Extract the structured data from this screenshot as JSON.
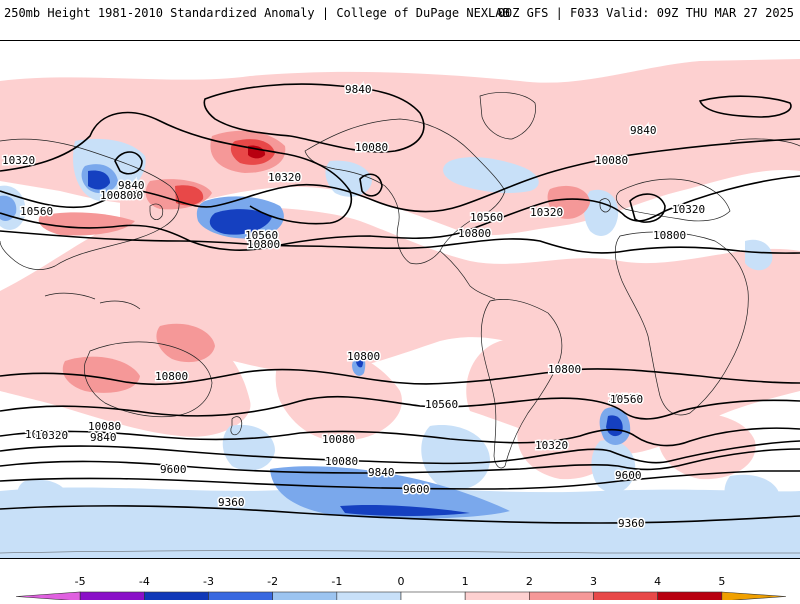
{
  "header": {
    "left": "250mb Height 1981-2010 Standardized Anomaly | College of DuPage NEXLAB",
    "right": "00Z GFS | F033 Valid: 09Z THU MAR 27 2025"
  },
  "colorbar": {
    "ticks": [
      "-5",
      "-4",
      "-3",
      "-2",
      "-1",
      "0",
      "1",
      "2",
      "3",
      "4",
      "5"
    ],
    "colors": [
      "#e060e0",
      "#8a10c8",
      "#1038b8",
      "#3868e0",
      "#9cc4f0",
      "#c8e0f8",
      "#ffffff",
      "#fdd0d0",
      "#f59898",
      "#e84848",
      "#b80010",
      "#f0a000"
    ]
  },
  "contour_labels": [
    "9840",
    "10320",
    "10080",
    "10560",
    "10320",
    "10080",
    "10560",
    "10800",
    "9840",
    "10080",
    "10560",
    "10320",
    "10800",
    "10800",
    "10080",
    "10320",
    "10800",
    "10800",
    "10560",
    "10320",
    "10080",
    "9840",
    "10560",
    "10320",
    "10080",
    "9840",
    "9600",
    "10800",
    "10560",
    "10080",
    "9840",
    "10320",
    "9600",
    "9600",
    "9360",
    "9360"
  ]
}
